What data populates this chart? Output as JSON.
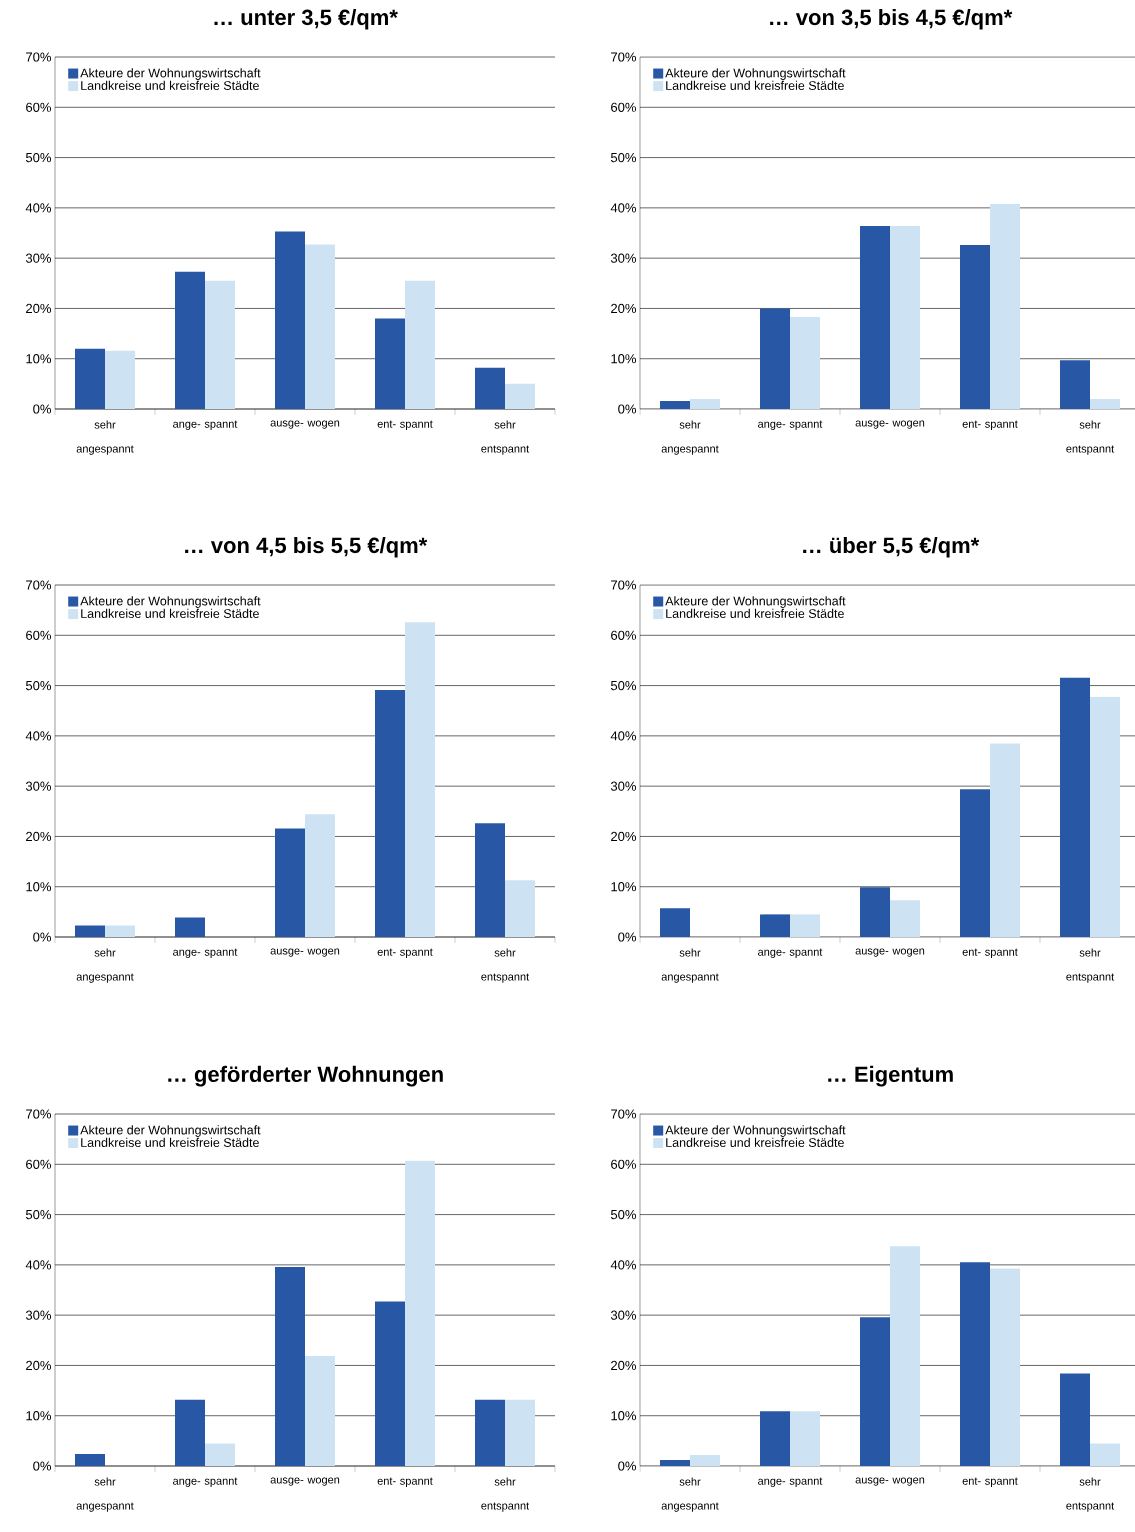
{
  "chart_data": [
    {
      "type": "bar",
      "title": "… unter 3,5 €/qm*",
      "categories": [
        "sehr angespannt",
        "ange- spannt",
        "ausge- wogen",
        "ent- spannt",
        "sehr entspannt"
      ],
      "ylim": [
        0,
        70
      ],
      "yticks": [
        {
          "value": 0,
          "label": "0%"
        },
        {
          "value": 10,
          "label": "10%"
        },
        {
          "value": 20,
          "label": "20%"
        },
        {
          "value": 30,
          "label": "30%"
        },
        {
          "value": 40,
          "label": "40%"
        },
        {
          "value": 50,
          "label": "50%"
        },
        {
          "value": 60,
          "label": "60%"
        },
        {
          "value": 70,
          "label": "70%"
        }
      ],
      "grid": "y",
      "legend": "top left",
      "series": [
        {
          "name": "Akteure der Wohnungswirtschaft",
          "color": "#2757a5",
          "values": [
            12,
            27.3,
            35.3,
            18,
            8.2
          ]
        },
        {
          "name": "Landkreise und kreisfreie Städte",
          "color": "#cde3f3",
          "values": [
            11.6,
            25.5,
            32.7,
            25.5,
            5
          ]
        }
      ]
    },
    {
      "type": "bar",
      "title": "… von 3,5 bis 4,5 €/qm*",
      "categories": [
        "sehr angespannt",
        "ange- spannt",
        "ausge- wogen",
        "ent- spannt",
        "sehr entspannt"
      ],
      "ylim": [
        0,
        70
      ],
      "yticks": [
        {
          "value": 0,
          "label": "0%"
        },
        {
          "value": 10,
          "label": "10%"
        },
        {
          "value": 20,
          "label": "20%"
        },
        {
          "value": 30,
          "label": "30%"
        },
        {
          "value": 40,
          "label": "40%"
        },
        {
          "value": 50,
          "label": "50%"
        },
        {
          "value": 60,
          "label": "60%"
        },
        {
          "value": 70,
          "label": "70%"
        }
      ],
      "grid": "y",
      "legend": "top left",
      "series": [
        {
          "name": "Akteure der Wohnungswirtschaft",
          "color": "#2757a5",
          "values": [
            1.6,
            20,
            36.4,
            32.6,
            9.7
          ]
        },
        {
          "name": "Landkreise und kreisfreie Städte",
          "color": "#cde3f3",
          "values": [
            2,
            18.3,
            36.4,
            40.8,
            2
          ]
        }
      ]
    },
    {
      "type": "bar",
      "title": "… von 4,5 bis 5,5 €/qm*",
      "categories": [
        "sehr angespannt",
        "ange- spannt",
        "ausge- wogen",
        "ent- spannt",
        "sehr entspannt"
      ],
      "ylim": [
        0,
        70
      ],
      "yticks": [
        {
          "value": 0,
          "label": "0%"
        },
        {
          "value": 10,
          "label": "10%"
        },
        {
          "value": 20,
          "label": "20%"
        },
        {
          "value": 30,
          "label": "30%"
        },
        {
          "value": 40,
          "label": "40%"
        },
        {
          "value": 50,
          "label": "50%"
        },
        {
          "value": 60,
          "label": "60%"
        },
        {
          "value": 70,
          "label": "70%"
        }
      ],
      "grid": "y",
      "legend": "top left",
      "series": [
        {
          "name": "Akteure der Wohnungswirtschaft",
          "color": "#2757a5",
          "values": [
            2.3,
            3.9,
            21.6,
            49.1,
            22.6
          ]
        },
        {
          "name": "Landkreise und kreisfreie Städte",
          "color": "#cde3f3",
          "values": [
            2.3,
            0,
            24.4,
            62.6,
            11.3
          ]
        }
      ]
    },
    {
      "type": "bar",
      "title": "… über 5,5 €/qm*",
      "categories": [
        "sehr angespannt",
        "ange- spannt",
        "ausge- wogen",
        "ent- spannt",
        "sehr entspannt"
      ],
      "ylim": [
        0,
        70
      ],
      "yticks": [
        {
          "value": 0,
          "label": "0%"
        },
        {
          "value": 10,
          "label": "10%"
        },
        {
          "value": 20,
          "label": "20%"
        },
        {
          "value": 30,
          "label": "30%"
        },
        {
          "value": 40,
          "label": "40%"
        },
        {
          "value": 50,
          "label": "50%"
        },
        {
          "value": 60,
          "label": "60%"
        },
        {
          "value": 70,
          "label": "70%"
        }
      ],
      "grid": "y",
      "legend": "top left",
      "series": [
        {
          "name": "Akteure der Wohnungswirtschaft",
          "color": "#2757a5",
          "values": [
            5.7,
            4.5,
            9.9,
            29.4,
            51.6
          ]
        },
        {
          "name": "Landkreise und kreisfreie Städte",
          "color": "#cde3f3",
          "values": [
            0,
            4.5,
            7.3,
            38.5,
            47.8
          ]
        }
      ]
    },
    {
      "type": "bar",
      "title": "… geförderter Wohnungen",
      "categories": [
        "sehr angespannt",
        "ange- spannt",
        "ausge- wogen",
        "ent- spannt",
        "sehr entspannt"
      ],
      "ylim": [
        0,
        70
      ],
      "yticks": [
        {
          "value": 0,
          "label": "0%"
        },
        {
          "value": 10,
          "label": "10%"
        },
        {
          "value": 20,
          "label": "20%"
        },
        {
          "value": 30,
          "label": "30%"
        },
        {
          "value": 40,
          "label": "40%"
        },
        {
          "value": 50,
          "label": "50%"
        },
        {
          "value": 60,
          "label": "60%"
        },
        {
          "value": 70,
          "label": "70%"
        }
      ],
      "grid": "y",
      "legend": "top left",
      "series": [
        {
          "name": "Akteure der Wohnungswirtschaft",
          "color": "#2757a5",
          "values": [
            2.4,
            13.2,
            39.6,
            32.7,
            13.2
          ]
        },
        {
          "name": "Landkreise und kreisfreie Städte",
          "color": "#cde3f3",
          "values": [
            0,
            4.5,
            21.9,
            60.7,
            13.2
          ]
        }
      ]
    },
    {
      "type": "bar",
      "title": "… Eigentum",
      "categories": [
        "sehr angespannt",
        "ange- spannt",
        "ausge- wogen",
        "ent- spannt",
        "sehr entspannt"
      ],
      "ylim": [
        0,
        70
      ],
      "yticks": [
        {
          "value": 0,
          "label": "0%"
        },
        {
          "value": 10,
          "label": "10%"
        },
        {
          "value": 20,
          "label": "20%"
        },
        {
          "value": 30,
          "label": "30%"
        },
        {
          "value": 40,
          "label": "40%"
        },
        {
          "value": 50,
          "label": "50%"
        },
        {
          "value": 60,
          "label": "60%"
        },
        {
          "value": 70,
          "label": "70%"
        }
      ],
      "grid": "y",
      "legend": "top left",
      "series": [
        {
          "name": "Akteure der Wohnungswirtschaft",
          "color": "#2757a5",
          "values": [
            1.2,
            10.9,
            29.6,
            40.5,
            18.4
          ]
        },
        {
          "name": "Landkreise und kreisfreie Städte",
          "color": "#cde3f3",
          "values": [
            2.2,
            10.9,
            43.7,
            39.3,
            4.5
          ]
        }
      ]
    }
  ]
}
